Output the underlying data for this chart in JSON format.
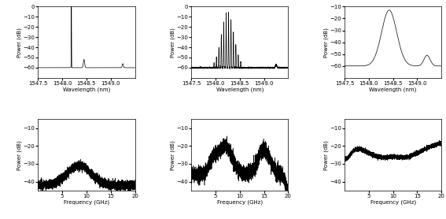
{
  "fig_width": 5.67,
  "fig_height": 2.78,
  "dpi": 100,
  "background_color": "#ffffff",
  "line_color": "#000000",
  "top_row": {
    "panels": [
      {
        "xlim": [
          1547.5,
          1549.5
        ],
        "ylim": [
          -70,
          0
        ],
        "xticks": [
          1547.5,
          1548,
          1548.5,
          1549
        ],
        "yticks": [
          -60,
          -50,
          -40,
          -30,
          -20,
          -10,
          0
        ]
      },
      {
        "xlim": [
          1547.5,
          1549.5
        ],
        "ylim": [
          -70,
          0
        ],
        "xticks": [
          1547.5,
          1548,
          1548.5,
          1549
        ],
        "yticks": [
          -60,
          -50,
          -40,
          -30,
          -20,
          -10,
          0
        ]
      },
      {
        "xlim": [
          1547.5,
          1549.5
        ],
        "ylim": [
          -70,
          -10
        ],
        "xticks": [
          1547.5,
          1548,
          1548.5,
          1549
        ],
        "yticks": [
          -60,
          -50,
          -40,
          -30,
          -20,
          -10
        ]
      }
    ],
    "xlabel": "Wavelength (nm)",
    "ylabel": "Power (dB)"
  },
  "bottom_row": {
    "xlim": [
      0,
      20
    ],
    "panels": [
      {
        "ylim": [
          -45,
          -5
        ],
        "yticks": [
          -40,
          -30,
          -20,
          -10
        ]
      },
      {
        "ylim": [
          -45,
          -5
        ],
        "yticks": [
          -40,
          -30,
          -20,
          -10
        ]
      },
      {
        "ylim": [
          -45,
          -5
        ],
        "yticks": [
          -40,
          -30,
          -20,
          -10
        ]
      }
    ],
    "xlabel": "Frequency (GHz)",
    "ylabel": "Power (dB)",
    "xticks": [
      5,
      10,
      15,
      20
    ]
  }
}
